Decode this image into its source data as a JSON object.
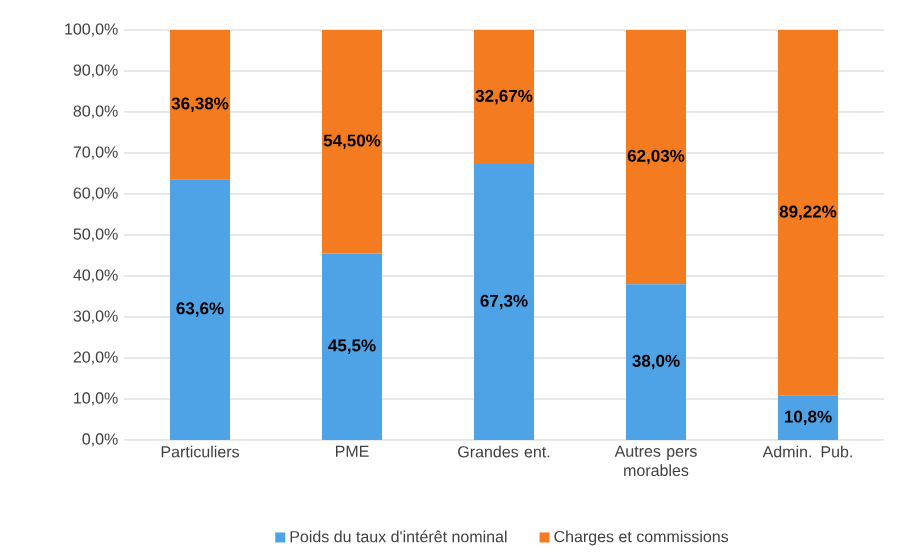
{
  "chart_data": {
    "type": "bar",
    "stacked": true,
    "categories": [
      "Particuliers",
      "PME",
      "Grandes ent.",
      "Autres pers morables",
      "Admin. Pub."
    ],
    "series": [
      {
        "name": "Poids du taux d'intérêt nominal",
        "color": "#4ea3e6",
        "values": [
          63.6,
          45.5,
          67.3,
          38.0,
          10.8
        ],
        "value_labels": [
          "63,6%",
          "45,5%",
          "67,3%",
          "38,0%",
          "10,8%"
        ]
      },
      {
        "name": "Charges et commissions",
        "color": "#f47b20",
        "values": [
          36.38,
          54.5,
          32.67,
          62.03,
          89.22
        ],
        "value_labels": [
          "36,38%",
          "54,50%",
          "32,67%",
          "62,03%",
          "89,22%"
        ]
      }
    ],
    "ylim": [
      0,
      100
    ],
    "yticks": [
      {
        "value": 0,
        "label": "0,0%"
      },
      {
        "value": 10,
        "label": "10,0%"
      },
      {
        "value": 20,
        "label": "20,0%"
      },
      {
        "value": 30,
        "label": "30,0%"
      },
      {
        "value": 40,
        "label": "40,0%"
      },
      {
        "value": 50,
        "label": "50,0%"
      },
      {
        "value": 60,
        "label": "60,0%"
      },
      {
        "value": 70,
        "label": "70,0%"
      },
      {
        "value": 80,
        "label": "80,0%"
      },
      {
        "value": 90,
        "label": "90,0%"
      },
      {
        "value": 100,
        "label": "100,0%"
      }
    ],
    "grid": "y",
    "legend": "bottom"
  }
}
